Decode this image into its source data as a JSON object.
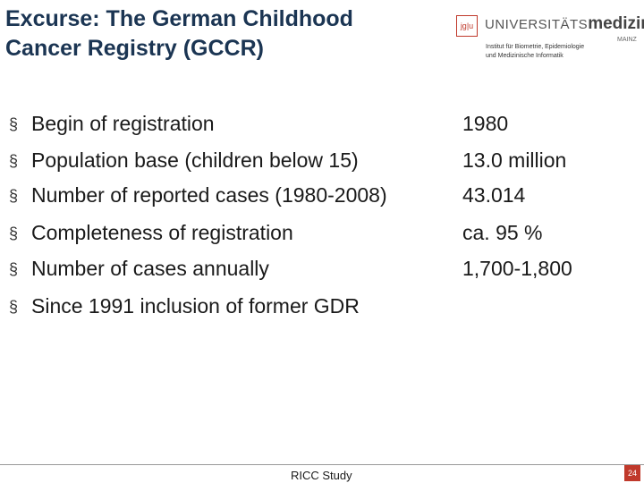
{
  "header": {
    "title_lines": [
      "Excurse: The German Childhood",
      "Cancer Registry (GCCR)"
    ]
  },
  "logo": {
    "mark": "jg|u",
    "name_light": "UNIVERSITÄTS",
    "name_bold": "medizin.",
    "city": "MAINZ",
    "institute_lines": [
      "Institut für Biometrie, Epidemiologie",
      "und Medizinische Informatik"
    ]
  },
  "bullet_symbol": "§",
  "bullets": [
    {
      "label": "Begin of registration",
      "value": "1980"
    },
    {
      "label": "Population base (children below 15)",
      "value": "13.0 million"
    },
    {
      "label": "Number of reported cases (1980-2008)",
      "value": "43.014"
    },
    {
      "label": "Completeness of registration",
      "value": "ca. 95 %"
    },
    {
      "label": "Number of cases annually",
      "value": "1,700-1,800"
    },
    {
      "label": "Since 1991 inclusion of former GDR"
    }
  ],
  "footer": {
    "text": "RICC Study",
    "page": "24"
  }
}
